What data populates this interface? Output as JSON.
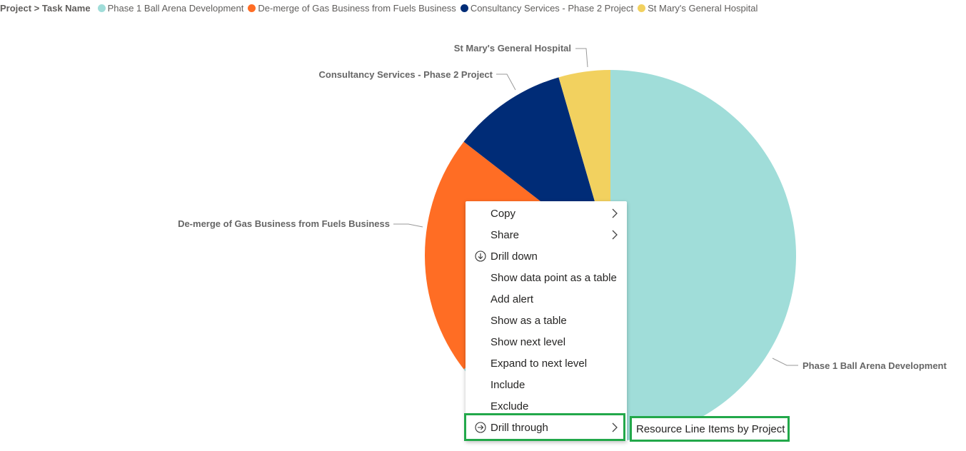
{
  "legend": {
    "title": "Project > Task Name",
    "items": [
      {
        "label": "Phase 1 Ball Arena Development",
        "color": "#A0DDD9"
      },
      {
        "label": "De-merge of Gas Business from Fuels Business",
        "color": "#FF6D24"
      },
      {
        "label": "Consultancy Services - Phase 2 Project",
        "color": "#002C77"
      },
      {
        "label": "St Mary's General Hospital",
        "color": "#F2D15F"
      }
    ]
  },
  "chart_data": {
    "type": "pie",
    "slices": [
      {
        "label": "Phase 1 Ball Arena Development",
        "value": 0.645,
        "color": "#A0DDD9"
      },
      {
        "label": "De-merge of Gas Business from Fuels Business",
        "value": 0.21,
        "color": "#FF6D24"
      },
      {
        "label": "Consultancy Services - Phase 2 Project",
        "value": 0.1,
        "color": "#002C77"
      },
      {
        "label": "St Mary's General Hospital",
        "value": 0.045,
        "color": "#F2D15F"
      }
    ]
  },
  "context_menu": {
    "items": [
      {
        "label": "Copy",
        "submenu": true,
        "icon": ""
      },
      {
        "label": "Share",
        "submenu": true,
        "icon": ""
      },
      {
        "label": "Drill down",
        "submenu": false,
        "icon": "arrow-down-circle-icon"
      },
      {
        "label": "Show data point as a table",
        "submenu": false,
        "icon": ""
      },
      {
        "label": "Add alert",
        "submenu": false,
        "icon": ""
      },
      {
        "label": "Show as a table",
        "submenu": false,
        "icon": ""
      },
      {
        "label": "Show next level",
        "submenu": false,
        "icon": ""
      },
      {
        "label": "Expand to next level",
        "submenu": false,
        "icon": ""
      },
      {
        "label": "Include",
        "submenu": false,
        "icon": ""
      },
      {
        "label": "Exclude",
        "submenu": false,
        "icon": ""
      },
      {
        "label": "Drill through",
        "submenu": true,
        "icon": "arrow-right-circle-icon",
        "highlighted": true
      }
    ]
  },
  "drill_through_submenu": {
    "items": [
      "Resource Line Items by Project"
    ]
  },
  "highlight_color": "#22A84A"
}
